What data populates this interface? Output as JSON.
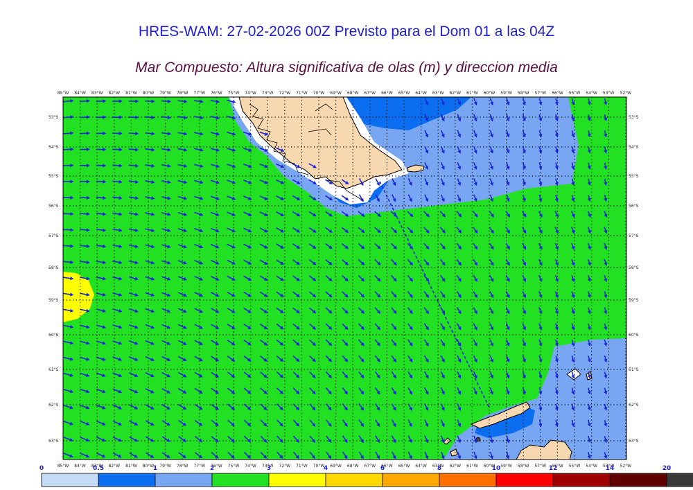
{
  "header": {
    "title": "HRES-WAM: 27-02-2026 00Z Previsto para el Dom 01 a las 04Z",
    "subtitle": "Mar Compuesto: Altura significativa de olas (m) y direccion media"
  },
  "map": {
    "lon_labels": [
      "85°W",
      "84°W",
      "83°W",
      "82°W",
      "81°W",
      "80°W",
      "79°W",
      "78°W",
      "77°W",
      "76°W",
      "75°W",
      "74°W",
      "73°W",
      "72°W",
      "71°W",
      "70°W",
      "69°W",
      "68°W",
      "67°W",
      "66°W",
      "65°W",
      "64°W",
      "63°W",
      "62°W",
      "61°W",
      "60°W",
      "59°W",
      "58°W",
      "57°W",
      "56°W",
      "55°W",
      "54°W",
      "53°W",
      "52°W"
    ],
    "lat_labels": [
      "53°S",
      "54°S",
      "55°S",
      "56°S",
      "57°S",
      "58°S",
      "59°S",
      "60°S",
      "61°S",
      "62°S",
      "63°S"
    ],
    "colors": {
      "land": "#f8d8b0",
      "ice": "#ffffff",
      "coast": "#000000",
      "arrow": "#1a24d8",
      "route": "#1a24d8",
      "grid": "#000000"
    }
  },
  "legend": {
    "labels": [
      "0",
      "0.5",
      "1",
      "2",
      "3",
      "4",
      "6",
      "8",
      "10",
      "12",
      "14",
      "20"
    ],
    "colors": [
      "#c6dcf6",
      "#0b6ef0",
      "#78a6f2",
      "#22e022",
      "#ffff00",
      "#ffd800",
      "#ffa800",
      "#ff7000",
      "#ff0000",
      "#a00000",
      "#600000",
      "#383838"
    ]
  }
}
